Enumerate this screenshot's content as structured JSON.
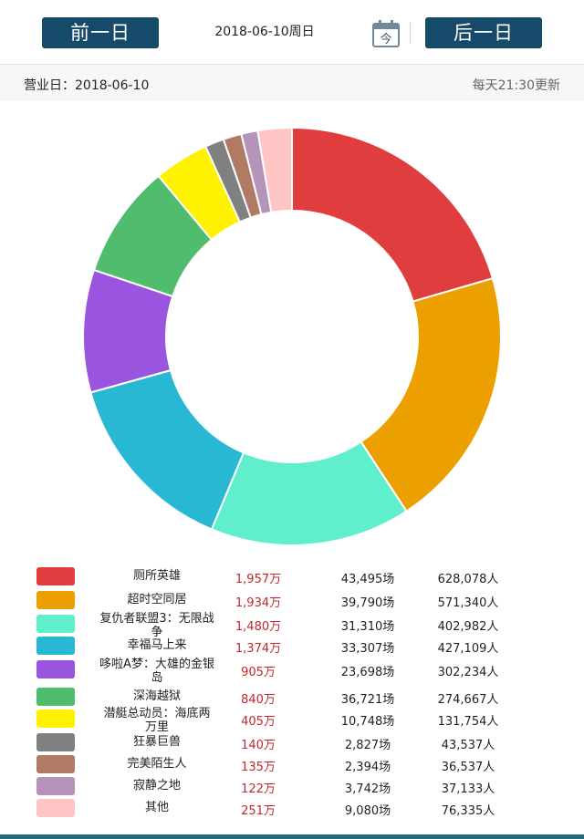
{
  "header": {
    "prev_label": "前一日",
    "next_label": "后一日",
    "date_title": "2018-06-10周日",
    "calendar_label": "今"
  },
  "subheader": {
    "business_date": "营业日：2018-06-10",
    "update_note": "每天21:30更新"
  },
  "movies": [
    {
      "name": "厕所英雄",
      "box": "1,957万",
      "shows": "43,495场",
      "people": "628,078人",
      "color": "#e03e3e"
    },
    {
      "name": "超时空同居",
      "box": "1,934万",
      "shows": "39,790场",
      "people": "571,340人",
      "color": "#eca000"
    },
    {
      "name": "复仇者联盟3：无限战争",
      "box": "1,480万",
      "shows": "31,310场",
      "people": "402,982人",
      "color": "#60efcd"
    },
    {
      "name": "幸福马上来",
      "box": "1,374万",
      "shows": "33,307场",
      "people": "427,109人",
      "color": "#28b8d4"
    },
    {
      "name": "哆啦A梦：大雄的金银岛",
      "box": "905万",
      "shows": "23,698场",
      "people": "302,234人",
      "color": "#9a55de"
    },
    {
      "name": "深海越狱",
      "box": "840万",
      "shows": "36,721场",
      "people": "274,667人",
      "color": "#4fbc6e"
    },
    {
      "name": "潜艇总动员：海底两万里",
      "box": "405万",
      "shows": "10,748场",
      "people": "131,754人",
      "color": "#fff200"
    },
    {
      "name": "狂暴巨兽",
      "box": "140万",
      "shows": "2,827场",
      "people": "43,537人",
      "color": "#808080"
    },
    {
      "name": "完美陌生人",
      "box": "135万",
      "shows": "2,394场",
      "people": "36,537人",
      "color": "#b07a65"
    },
    {
      "name": "寂静之地",
      "box": "122万",
      "shows": "3,742场",
      "people": "37,133人",
      "color": "#b693b8"
    },
    {
      "name": "其他",
      "box": "251万",
      "shows": "9,080场",
      "people": "76,335人",
      "color": "#ffc4c4"
    }
  ],
  "chart_data": {
    "type": "pie",
    "categories": [
      "厕所英雄",
      "超时空同居",
      "复仇者联盟3：无限战争",
      "幸福马上来",
      "哆啦A梦：大雄的金银岛",
      "深海越狱",
      "潜艇总动员：海底两万里",
      "狂暴巨兽",
      "完美陌生人",
      "寂静之地",
      "其他"
    ],
    "values": [
      1957,
      1934,
      1480,
      1374,
      905,
      840,
      405,
      140,
      135,
      122,
      251
    ],
    "colors": [
      "#e03e3e",
      "#eca000",
      "#60efcd",
      "#28b8d4",
      "#9a55de",
      "#4fbc6e",
      "#fff200",
      "#808080",
      "#b07a65",
      "#b693b8",
      "#ffc4c4"
    ],
    "donut": true,
    "legend": "bottom"
  }
}
